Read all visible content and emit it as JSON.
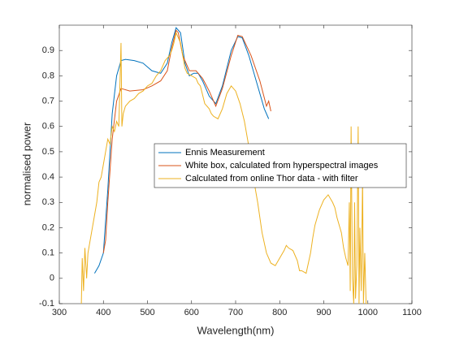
{
  "chart_data": {
    "type": "line",
    "xlabel": "Wavelength(nm)",
    "ylabel": "normalised power",
    "xlim": [
      300,
      1100
    ],
    "xticks": [
      300,
      400,
      500,
      600,
      700,
      800,
      900,
      1000,
      1100
    ],
    "ylim": [
      -0.1,
      1.0
    ],
    "yticks": [
      -0.1,
      0,
      0.1,
      0.2,
      0.3,
      0.4,
      0.5,
      0.6,
      0.7,
      0.8,
      0.9
    ],
    "legend": "center",
    "series": [
      {
        "name": "Ennis Measurement",
        "color": "#0072bd",
        "x": [
          380,
          390,
          400,
          410,
          420,
          430,
          440,
          450,
          470,
          490,
          510,
          530,
          545,
          555,
          565,
          575,
          585,
          595,
          605,
          615,
          625,
          640,
          655,
          670,
          690,
          705,
          715,
          730,
          750,
          765,
          775
        ],
        "values": [
          0.02,
          0.05,
          0.1,
          0.35,
          0.65,
          0.8,
          0.86,
          0.865,
          0.86,
          0.85,
          0.82,
          0.81,
          0.85,
          0.93,
          0.99,
          0.97,
          0.85,
          0.8,
          0.81,
          0.81,
          0.78,
          0.72,
          0.69,
          0.76,
          0.9,
          0.955,
          0.95,
          0.88,
          0.76,
          0.67,
          0.63
        ]
      },
      {
        "name": "White box, calculated from hyperspectral images",
        "color": "#d95319",
        "x": [
          400,
          405,
          410,
          420,
          430,
          440,
          460,
          490,
          510,
          530,
          545,
          555,
          565,
          570,
          580,
          595,
          610,
          625,
          640,
          655,
          670,
          690,
          705,
          715,
          735,
          755,
          770,
          775,
          780
        ],
        "values": [
          0.1,
          0.15,
          0.3,
          0.55,
          0.7,
          0.75,
          0.74,
          0.745,
          0.76,
          0.78,
          0.82,
          0.91,
          0.98,
          0.97,
          0.88,
          0.82,
          0.82,
          0.79,
          0.74,
          0.68,
          0.75,
          0.88,
          0.96,
          0.955,
          0.88,
          0.78,
          0.68,
          0.7,
          0.66
        ]
      },
      {
        "name": "Calculated from online Thor data - with filter",
        "color": "#edb120",
        "x": [
          350,
          352,
          355,
          358,
          362,
          365,
          370,
          375,
          380,
          385,
          390,
          395,
          400,
          405,
          410,
          415,
          420,
          425,
          430,
          435,
          440,
          442,
          445,
          450,
          460,
          470,
          480,
          490,
          500,
          510,
          520,
          530,
          540,
          550,
          555,
          560,
          565,
          570,
          575,
          580,
          585,
          590,
          600,
          610,
          615,
          620,
          630,
          640,
          645,
          650,
          660,
          670,
          675,
          680,
          690,
          700,
          710,
          720,
          730,
          740,
          750,
          760,
          770,
          780,
          790,
          800,
          810,
          815,
          820,
          830,
          840,
          845,
          850,
          860,
          870,
          875,
          880,
          890,
          895,
          900,
          910,
          920,
          925,
          930,
          940,
          945,
          950,
          955,
          958,
          960,
          962,
          965,
          968,
          970,
          972,
          975,
          978,
          980,
          982,
          985,
          988,
          990,
          993,
          996,
          1000
        ],
        "values": [
          -0.1,
          0.08,
          -0.05,
          0.12,
          0.0,
          0.1,
          0.15,
          0.2,
          0.25,
          0.3,
          0.38,
          0.4,
          0.45,
          0.5,
          0.55,
          0.53,
          0.6,
          0.58,
          0.62,
          0.6,
          0.93,
          0.6,
          0.65,
          0.68,
          0.7,
          0.71,
          0.73,
          0.74,
          0.76,
          0.77,
          0.8,
          0.82,
          0.86,
          0.88,
          0.9,
          0.93,
          0.97,
          0.95,
          0.93,
          0.88,
          0.83,
          0.81,
          0.8,
          0.79,
          0.77,
          0.76,
          0.69,
          0.67,
          0.65,
          0.64,
          0.63,
          0.67,
          0.7,
          0.73,
          0.76,
          0.74,
          0.69,
          0.62,
          0.52,
          0.4,
          0.3,
          0.18,
          0.1,
          0.06,
          0.05,
          0.08,
          0.11,
          0.13,
          0.12,
          0.11,
          0.07,
          0.03,
          0.03,
          0.02,
          0.1,
          0.16,
          0.21,
          0.27,
          0.29,
          0.31,
          0.33,
          0.3,
          0.28,
          0.24,
          0.18,
          0.12,
          0.08,
          0.05,
          0.3,
          -0.05,
          0.6,
          0.0,
          -0.1,
          0.3,
          -0.08,
          0.05,
          0.6,
          -0.1,
          0.2,
          -0.05,
          0.4,
          -0.1,
          0.1,
          -0.1,
          -0.1
        ]
      }
    ]
  }
}
